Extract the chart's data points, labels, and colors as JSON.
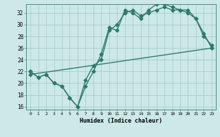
{
  "xlabel": "Humidex (Indice chaleur)",
  "background_color": "#cce8e8",
  "grid_color": "#aacccc",
  "line_color": "#2d7a6a",
  "xlim": [
    -0.5,
    23.5
  ],
  "ylim": [
    15.5,
    33.5
  ],
  "xticks": [
    0,
    1,
    2,
    3,
    4,
    5,
    6,
    7,
    8,
    9,
    10,
    11,
    12,
    13,
    14,
    15,
    16,
    17,
    18,
    19,
    20,
    21,
    22,
    23
  ],
  "yticks": [
    16,
    18,
    20,
    22,
    24,
    26,
    28,
    30,
    32
  ],
  "line1_x": [
    0,
    1,
    2,
    3,
    4,
    5,
    6,
    7,
    8,
    9,
    10,
    11,
    12,
    13,
    14,
    15,
    16,
    17,
    18,
    19,
    20,
    21,
    22,
    23
  ],
  "line1_y": [
    22,
    21,
    21.5,
    20,
    19.5,
    17.5,
    16,
    19.5,
    22,
    25,
    29.5,
    29,
    32.5,
    32,
    31,
    32.5,
    33.5,
    33.5,
    33,
    32.5,
    32,
    31,
    28,
    26.5
  ],
  "line2_x": [
    0,
    1,
    2,
    3,
    4,
    5,
    6,
    7,
    8,
    9,
    10,
    11,
    12,
    13,
    14,
    15,
    16,
    17,
    18,
    19,
    20,
    21,
    22,
    23
  ],
  "line2_y": [
    22,
    21,
    21.5,
    20,
    19.5,
    17.5,
    16,
    20.5,
    23,
    24,
    29,
    30,
    32,
    32.5,
    31.5,
    32,
    32.5,
    33,
    32.5,
    32.5,
    32.5,
    31,
    28.5,
    26
  ],
  "line3_x": [
    0,
    23
  ],
  "line3_y": [
    21.5,
    26
  ],
  "marker_size": 2.5,
  "linewidth": 1.0
}
